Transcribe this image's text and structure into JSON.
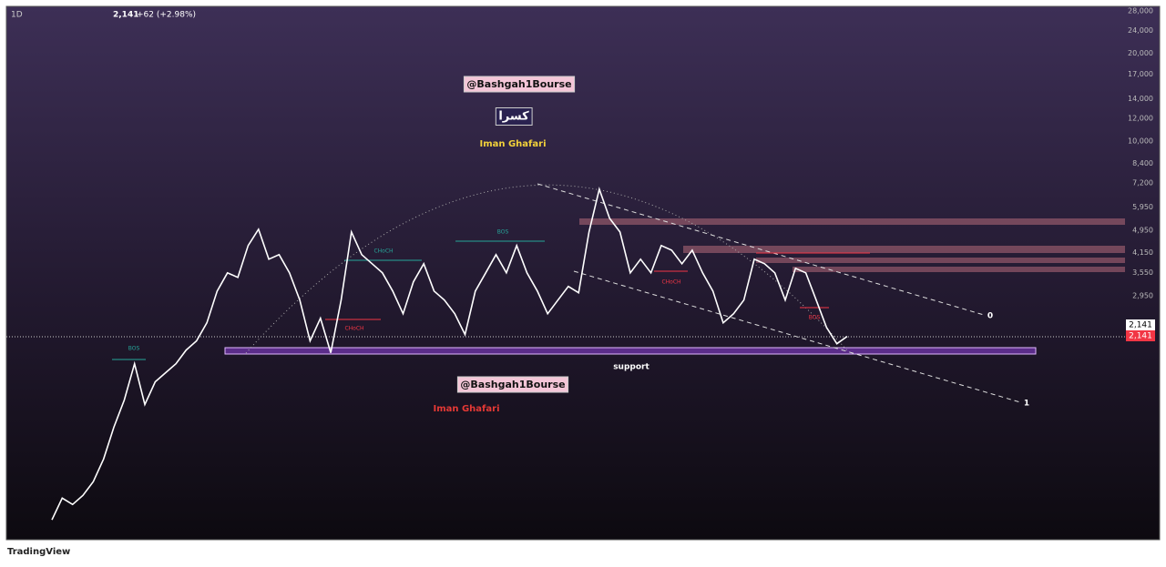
{
  "chart_data": {
    "type": "line",
    "log_scale": true,
    "color": "#ffffff",
    "last": "2,141",
    "change": "+62 (+2.98%)",
    "interval": "1D",
    "ylim": [
      430,
      29000
    ],
    "yticks": [
      {
        "value": 28000,
        "label": "28,000"
      },
      {
        "value": 24000,
        "label": "24,000"
      },
      {
        "value": 20000,
        "label": "20,000"
      },
      {
        "value": 17000,
        "label": "17,000"
      },
      {
        "value": 14000,
        "label": "14,000"
      },
      {
        "value": 12000,
        "label": "12,000"
      },
      {
        "value": 10000,
        "label": "10,000"
      },
      {
        "value": 8400,
        "label": "8,400"
      },
      {
        "value": 7200,
        "label": "7,200"
      },
      {
        "value": 5950,
        "label": "5,950"
      },
      {
        "value": 4950,
        "label": "4,950"
      },
      {
        "value": 4150,
        "label": "4,150"
      },
      {
        "value": 3550,
        "label": "3,550"
      },
      {
        "value": 2950,
        "label": "2,950"
      }
    ],
    "values": [
      503,
      597,
      568,
      610,
      680,
      813,
      1045,
      1295,
      1725,
      1250,
      1496,
      1606,
      1725,
      1922,
      2066,
      2383,
      3064,
      3537,
      3412,
      4387,
      4991,
      3939,
      4083,
      3537,
      2852,
      2066,
      2471,
      1881,
      2852,
      4884,
      4083,
      3800,
      3537,
      3064,
      2561,
      3293,
      3800,
      3064,
      2852,
      2561,
      2172,
      3064,
      3537,
      4083,
      3537,
      4387,
      3537,
      3064,
      2561,
      2852,
      3177,
      3021,
      4884,
      6849,
      5440,
      4884,
      3537,
      3939,
      3537,
      4387,
      4230,
      3800,
      4230,
      3537,
      3064,
      2383,
      2561,
      2852,
      3939,
      3800,
      3537,
      2852,
      3667,
      3537,
      2852,
      2300,
      2021,
      2141
    ],
    "annotations": [
      "@Bashgah1Bourse",
      "کسرا",
      "Iman Ghafari",
      "support",
      "@Bashgah1Bourse",
      "Iman Ghafari",
      "BOS",
      "CHoCH",
      "BOS",
      "CHoCH",
      "CHoCH",
      "BOS",
      "0",
      "1"
    ],
    "footer": "TradingView"
  }
}
